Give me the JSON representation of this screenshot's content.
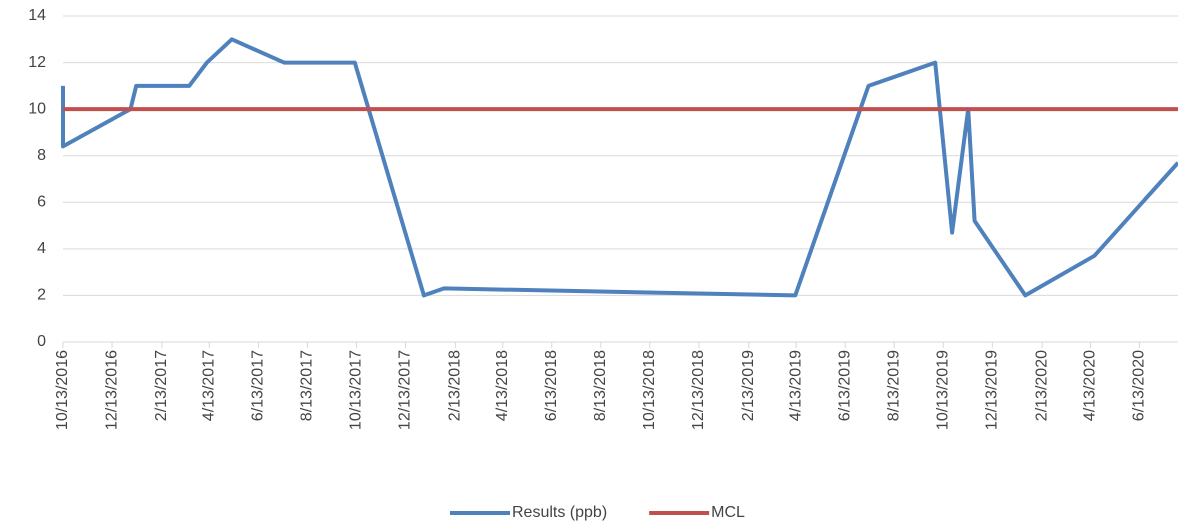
{
  "chart_data": {
    "type": "line",
    "series": [
      {
        "name": "Results (ppb)",
        "color": "#4f81bd",
        "x": [
          "10/13/2016",
          "10/13/2016",
          "1/5/2017",
          "1/12/2017",
          "3/19/2017",
          "4/10/2017",
          "5/11/2017",
          "7/15/2017",
          "10/11/2017",
          "1/5/2018",
          "1/30/2018",
          "4/12/2019",
          "7/12/2019",
          "10/3/2019",
          "10/24/2019",
          "11/13/2019",
          "11/21/2019",
          "1/23/2020",
          "4/18/2020",
          "7/31/2020"
        ],
        "values": [
          11,
          8.4,
          10,
          11,
          11,
          12,
          13,
          12,
          12,
          2,
          2.3,
          2,
          11,
          12,
          4.7,
          10,
          5.2,
          2,
          3.7,
          7.7
        ]
      },
      {
        "name": "MCL",
        "color": "#c0504d",
        "x": [
          "10/13/2016",
          "7/31/2020"
        ],
        "values": [
          10,
          10
        ]
      }
    ],
    "xlim": [
      "10/13/2016",
      "7/31/2020"
    ],
    "xticks": [
      "10/13/2016",
      "12/13/2016",
      "2/13/2017",
      "4/13/2017",
      "6/13/2017",
      "8/13/2017",
      "10/13/2017",
      "12/13/2017",
      "2/13/2018",
      "4/13/2018",
      "6/13/2018",
      "8/13/2018",
      "10/13/2018",
      "12/13/2018",
      "2/13/2019",
      "4/13/2019",
      "6/13/2019",
      "8/13/2019",
      "10/13/2019",
      "12/13/2019",
      "2/13/2020",
      "4/13/2020",
      "6/13/2020"
    ],
    "ylim": [
      0,
      14
    ],
    "yticks": [
      0,
      2,
      4,
      6,
      8,
      10,
      12,
      14
    ],
    "grid": true,
    "legend": "bottom"
  }
}
